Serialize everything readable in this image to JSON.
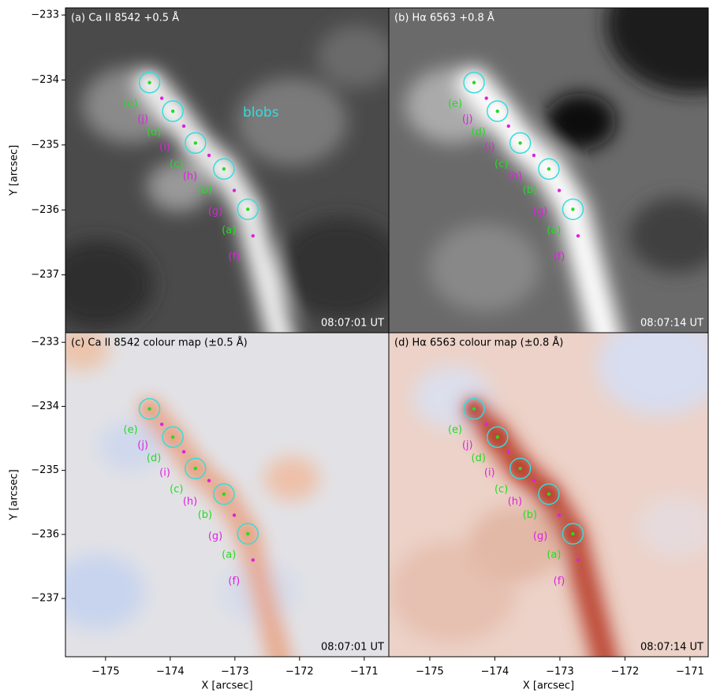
{
  "chart_data": [
    {
      "type": "image",
      "colormap": "gray",
      "title": "(a) Ca II 8542 +0.5 Å",
      "timestamp": "08:07:01 UT",
      "annotation": "blobs",
      "xlim": [
        -175.62,
        -170.62
      ],
      "ylim": [
        -232.89,
        -237.89
      ],
      "ylabel": "Y [arcsec]",
      "yticks": [
        {
          "value": -233,
          "label": "−233"
        },
        {
          "value": -234,
          "label": "−234"
        },
        {
          "value": -235,
          "label": "−235"
        },
        {
          "value": -236,
          "label": "−236"
        },
        {
          "value": -237,
          "label": "−237"
        }
      ]
    },
    {
      "type": "image",
      "colormap": "gray-halpha",
      "title": "(b) Hα 6563 +0.8 Å",
      "timestamp": "08:07:14 UT",
      "xlim": [
        -175.63,
        -170.72
      ],
      "ylim": [
        -232.89,
        -237.89
      ]
    },
    {
      "type": "image",
      "colormap": "red-blue-faint",
      "title": "(c) Ca II 8542 colour map (±0.5 Å)",
      "timestamp": "08:07:01 UT",
      "xlim": [
        -175.62,
        -170.62
      ],
      "ylim": [
        -232.85,
        -237.91
      ],
      "xlabel": "X [arcsec]",
      "ylabel": "Y [arcsec]",
      "xticks": [
        {
          "value": -175,
          "label": "−175"
        },
        {
          "value": -174,
          "label": "−174"
        },
        {
          "value": -173,
          "label": "−173"
        },
        {
          "value": -172,
          "label": "−172"
        },
        {
          "value": -171,
          "label": "−171"
        }
      ],
      "yticks": [
        {
          "value": -233,
          "label": "−233"
        },
        {
          "value": -234,
          "label": "−234"
        },
        {
          "value": -235,
          "label": "−235"
        },
        {
          "value": -236,
          "label": "−236"
        },
        {
          "value": -237,
          "label": "−237"
        }
      ]
    },
    {
      "type": "image",
      "colormap": "red-blue-strong",
      "title": "(d) Hα 6563 colour map (±0.8 Å)",
      "timestamp": "08:07:14 UT",
      "xlim": [
        -175.63,
        -170.72
      ],
      "ylim": [
        -232.85,
        -237.91
      ],
      "xlabel": "X [arcsec]",
      "xticks": [
        {
          "value": -175,
          "label": "−175"
        },
        {
          "value": -174,
          "label": "−174"
        },
        {
          "value": -173,
          "label": "−173"
        },
        {
          "value": -172,
          "label": "−172"
        },
        {
          "value": -171,
          "label": "−171"
        }
      ]
    }
  ],
  "markers": [
    {
      "color": "#22dd22",
      "labels": [
        "(a)",
        "(b)",
        "(c)",
        "(d)",
        "(e)"
      ],
      "x": [
        -172.8,
        -173.17,
        -173.61,
        -173.96,
        -174.32
      ],
      "y": [
        -235.99,
        -235.37,
        -234.97,
        -234.48,
        -234.04
      ]
    },
    {
      "color": "#dd22dd",
      "labels": [
        "(f)",
        "(g)",
        "(h)",
        "(i)",
        "(j)"
      ],
      "x": [
        -172.72,
        -173.01,
        -173.4,
        -173.79,
        -174.13
      ],
      "y": [
        -236.4,
        -235.7,
        -235.16,
        -234.71,
        -234.28
      ]
    }
  ]
}
